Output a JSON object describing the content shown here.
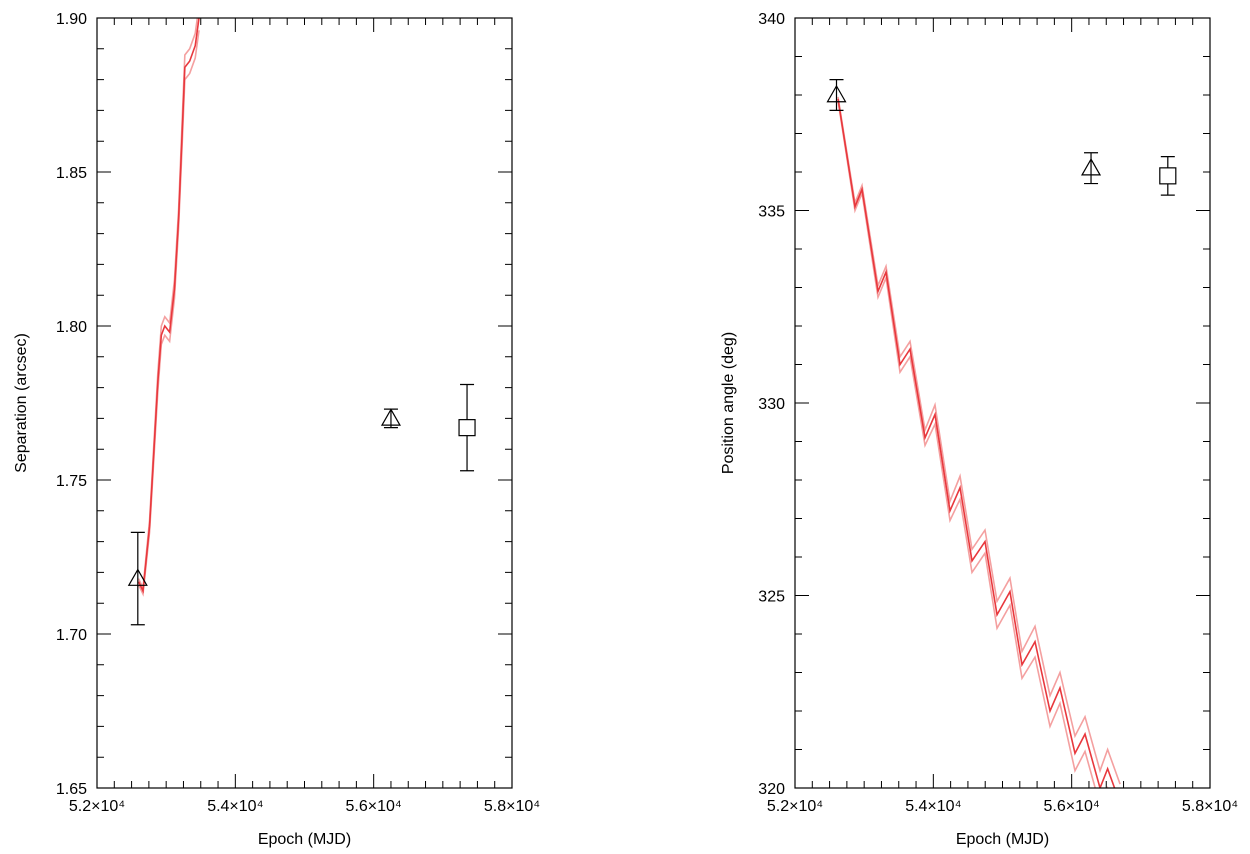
{
  "chart_data": [
    {
      "type": "scatter",
      "xlabel": "Epoch (MJD)",
      "ylabel": "Separation (arcsec)",
      "xlim": [
        52000,
        58000
      ],
      "ylim": [
        1.65,
        1.9
      ],
      "xticks": [
        {
          "value": 52000,
          "label": "5.2×10⁴"
        },
        {
          "value": 54000,
          "label": "5.4×10⁴"
        },
        {
          "value": 56000,
          "label": "5.6×10⁴"
        },
        {
          "value": 58000,
          "label": "5.8×10⁴"
        }
      ],
      "yticks": [
        1.65,
        {
          "value": 1.7,
          "label": "1.70"
        },
        1.75,
        {
          "value": 1.8,
          "label": "1.80"
        },
        1.85,
        {
          "value": 1.9,
          "label": "1.90"
        }
      ],
      "minor_xticks": [
        52250,
        52500,
        52750,
        53000,
        53250,
        53500,
        53750,
        54250,
        54500,
        54750,
        55000,
        55250,
        55500,
        55750,
        56250,
        56500,
        56750,
        57000,
        57250,
        57500,
        57750
      ],
      "minor_yticks": [
        1.66,
        1.67,
        1.68,
        1.69,
        1.71,
        1.72,
        1.73,
        1.74,
        1.76,
        1.77,
        1.78,
        1.79,
        1.81,
        1.82,
        1.83,
        1.84,
        1.86,
        1.87,
        1.88,
        1.89
      ],
      "series": [
        {
          "kind": "line",
          "color": "#f4a0a0",
          "x": [
            52600,
            52665,
            52760,
            52880,
            52930,
            52980,
            53050,
            53120,
            53180,
            53230,
            53270,
            53340,
            53420,
            53475
          ],
          "values": [
            1.718,
            1.715,
            1.737,
            1.785,
            1.8,
            1.803,
            1.801,
            1.815,
            1.838,
            1.866,
            1.888,
            1.89,
            1.895,
            1.904
          ]
        },
        {
          "kind": "line",
          "color": "#f4a0a0",
          "x": [
            52600,
            52665,
            52760,
            52880,
            52930,
            52980,
            53050,
            53120,
            53180,
            53230,
            53270,
            53340,
            53420,
            53475
          ],
          "values": [
            1.716,
            1.713,
            1.733,
            1.779,
            1.794,
            1.797,
            1.795,
            1.809,
            1.832,
            1.858,
            1.88,
            1.882,
            1.887,
            1.896
          ]
        },
        {
          "kind": "line",
          "color": "#e8383d",
          "x": [
            52600,
            52665,
            52760,
            52880,
            52930,
            52980,
            53050,
            53120,
            53180,
            53230,
            53270,
            53340,
            53420,
            53475
          ],
          "values": [
            1.717,
            1.714,
            1.735,
            1.782,
            1.797,
            1.8,
            1.798,
            1.812,
            1.835,
            1.862,
            1.884,
            1.886,
            1.891,
            1.9
          ]
        },
        {
          "kind": "points",
          "marker": "triangle",
          "color": "#000000",
          "x": [
            52590,
            56250
          ],
          "values": [
            1.718,
            1.77
          ],
          "errors": [
            0.015,
            0.003
          ]
        },
        {
          "kind": "points",
          "marker": "square",
          "color": "#000000",
          "x": [
            57350
          ],
          "values": [
            1.767
          ],
          "errors": [
            0.014
          ]
        }
      ]
    },
    {
      "type": "scatter",
      "xlabel": "Epoch (MJD)",
      "ylabel": "Position angle (deg)",
      "xlim": [
        52000,
        58000
      ],
      "ylim": [
        320,
        340
      ],
      "xticks": [
        {
          "value": 52000,
          "label": "5.2×10⁴"
        },
        {
          "value": 54000,
          "label": "5.4×10⁴"
        },
        {
          "value": 56000,
          "label": "5.6×10⁴"
        },
        {
          "value": 58000,
          "label": "5.8×10⁴"
        }
      ],
      "yticks": [
        320,
        325,
        330,
        335,
        340
      ],
      "minor_xticks": [
        52250,
        52500,
        52750,
        53000,
        53250,
        53500,
        53750,
        54250,
        54500,
        54750,
        55000,
        55250,
        55500,
        55750,
        56250,
        56500,
        56750,
        57000,
        57250,
        57500,
        57750
      ],
      "minor_yticks": [
        321,
        322,
        323,
        324,
        326,
        327,
        328,
        329,
        331,
        332,
        333,
        334,
        336,
        337,
        338,
        339
      ],
      "series": [
        {
          "kind": "line",
          "color": "#f4a0a0",
          "x": [
            52622,
            52867,
            52969,
            53200,
            53316,
            53518,
            53663,
            53880,
            54024,
            54241,
            54386,
            54559,
            54747,
            54921,
            55108,
            55282,
            55470,
            55687,
            55831,
            56048,
            56193,
            56410,
            56520,
            56700
          ],
          "values": [
            337.95,
            335.2,
            335.65,
            333.05,
            333.55,
            331.2,
            331.6,
            329.3,
            329.95,
            327.45,
            328.1,
            326.2,
            326.7,
            324.85,
            325.45,
            323.55,
            324.2,
            322.4,
            323.0,
            321.35,
            321.85,
            320.45,
            321.0,
            320.1
          ]
        },
        {
          "kind": "line",
          "color": "#f4a0a0",
          "x": [
            52622,
            52867,
            52969,
            53200,
            53316,
            53518,
            53663,
            53880,
            54024,
            54241,
            54386,
            54559,
            54747,
            54921,
            55108,
            55282,
            55470,
            55687,
            55831,
            56048,
            56193,
            56410,
            56520,
            56700
          ],
          "values": [
            337.85,
            335.0,
            335.45,
            332.75,
            333.25,
            330.8,
            331.2,
            328.9,
            329.45,
            326.95,
            327.5,
            325.6,
            326.1,
            324.15,
            324.75,
            322.85,
            323.4,
            321.6,
            322.2,
            320.45,
            320.95,
            319.55,
            320.0,
            319.1
          ]
        },
        {
          "kind": "line",
          "color": "#e8383d",
          "x": [
            52622,
            52867,
            52969,
            53200,
            53316,
            53518,
            53663,
            53880,
            54024,
            54241,
            54386,
            54559,
            54747,
            54921,
            55108,
            55282,
            55470,
            55687,
            55831,
            56048,
            56193,
            56410,
            56520,
            56700
          ],
          "values": [
            337.9,
            335.1,
            335.55,
            332.9,
            333.4,
            331.0,
            331.4,
            329.1,
            329.7,
            327.2,
            327.8,
            325.9,
            326.4,
            324.5,
            325.1,
            323.2,
            323.8,
            322.0,
            322.6,
            320.9,
            321.4,
            320.0,
            320.5,
            319.6
          ]
        },
        {
          "kind": "points",
          "marker": "triangle",
          "color": "#000000",
          "x": [
            52600,
            56280
          ],
          "values": [
            338.0,
            336.1
          ],
          "errors": [
            0.4,
            0.4
          ]
        },
        {
          "kind": "points",
          "marker": "square",
          "color": "#000000",
          "x": [
            57390
          ],
          "values": [
            335.9
          ],
          "errors": [
            0.5
          ]
        }
      ]
    }
  ]
}
